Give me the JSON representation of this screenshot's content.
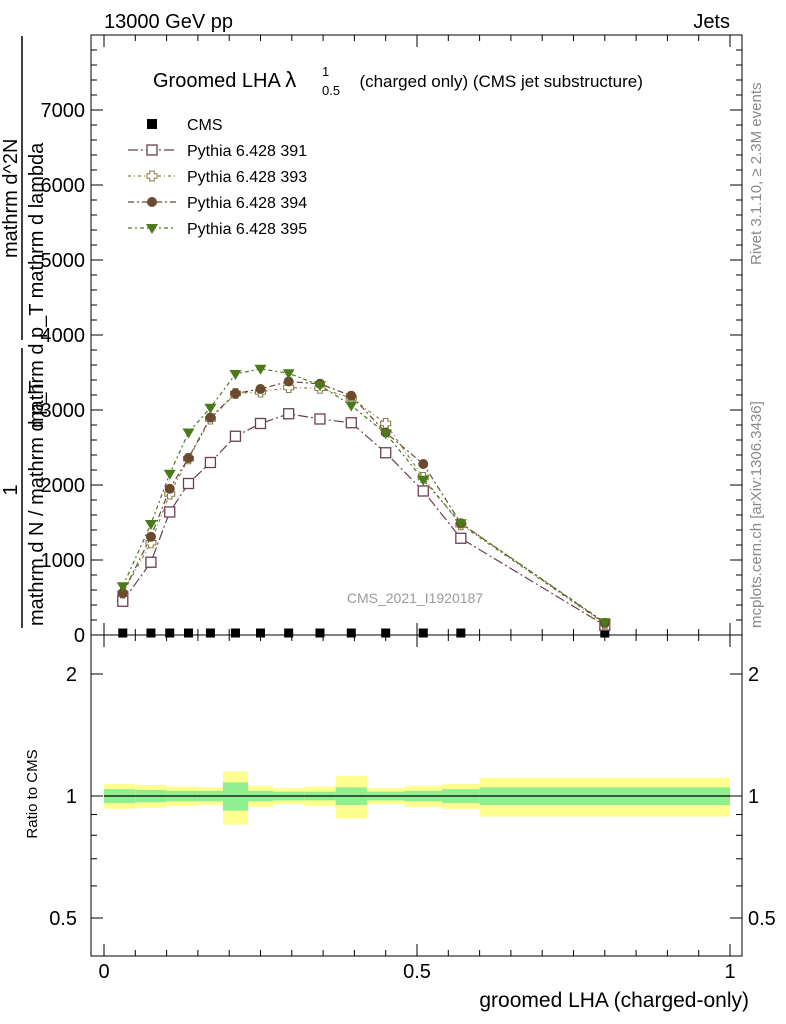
{
  "header": {
    "left": "13000 GeV pp",
    "right": "Jets"
  },
  "side_labels": {
    "rivet": "Rivet 3.1.10, ≥ 2.3M events",
    "mcplots": "mcplots.cern.ch [arXiv:1306.3436]"
  },
  "chart_data": {
    "type": "line",
    "title": {
      "main": "Groomed LHA ",
      "lambda": "λ",
      "sup": "1",
      "sub": "0.5",
      "rest": "  (charged only) (CMS jet substructure)"
    },
    "analysis_label": "CMS_2021_I1920187",
    "ylabel": {
      "prefactor": "1",
      "denominator": "mathrm d N / mathrm d p_T",
      "numerator_top": "mathrm d^2N",
      "numerator_bottom": "mathrm d p_T mathrm d lambda"
    },
    "xlabel": "groomed LHA (charged-only)",
    "xlim": [
      -0.02,
      1.0
    ],
    "ylim": [
      0,
      8000
    ],
    "yticks": [
      0,
      1000,
      2000,
      3000,
      4000,
      5000,
      6000,
      7000
    ],
    "ytick_labels": [
      "0",
      "1000",
      "2000",
      "3000",
      "4000",
      "5000",
      "6000",
      "7000"
    ],
    "xticks": [
      0,
      0.5,
      1
    ],
    "xtick_labels": [
      "0",
      "0.5",
      "1"
    ],
    "legend_position": "top-left",
    "series": [
      {
        "name": "CMS",
        "marker": "filled-square",
        "color": "#000000",
        "x": [
          0.03,
          0.075,
          0.105,
          0.135,
          0.17,
          0.21,
          0.25,
          0.295,
          0.345,
          0.395,
          0.45,
          0.51,
          0.57,
          0.8
        ],
        "y": [
          5,
          5,
          5,
          5,
          5,
          5,
          5,
          5,
          5,
          5,
          5,
          5,
          5,
          5
        ]
      },
      {
        "name": "Pythia 6.428 391",
        "marker": "open-square",
        "color": "#6b3f55",
        "x": [
          0.03,
          0.075,
          0.105,
          0.135,
          0.17,
          0.21,
          0.25,
          0.295,
          0.345,
          0.395,
          0.45,
          0.51,
          0.57,
          0.8
        ],
        "y": [
          450,
          970,
          1640,
          2020,
          2300,
          2650,
          2820,
          2950,
          2880,
          2830,
          2430,
          1920,
          1290,
          130
        ]
      },
      {
        "name": "Pythia 6.428 393",
        "marker": "open-cross",
        "color": "#8b7d4a",
        "x": [
          0.03,
          0.075,
          0.105,
          0.135,
          0.17,
          0.21,
          0.25,
          0.295,
          0.345,
          0.395,
          0.45,
          0.51,
          0.57,
          0.8
        ],
        "y": [
          560,
          1230,
          1880,
          2350,
          2880,
          3220,
          3240,
          3300,
          3290,
          3160,
          2820,
          2100,
          1470,
          150
        ]
      },
      {
        "name": "Pythia 6.428 394",
        "marker": "filled-circle",
        "color": "#6b4a30",
        "x": [
          0.03,
          0.075,
          0.105,
          0.135,
          0.17,
          0.21,
          0.25,
          0.295,
          0.345,
          0.395,
          0.45,
          0.51,
          0.57,
          0.8
        ],
        "y": [
          560,
          1310,
          1950,
          2360,
          2900,
          3220,
          3280,
          3380,
          3350,
          3190,
          2700,
          2280,
          1490,
          160
        ]
      },
      {
        "name": "Pythia 6.428 395",
        "marker": "filled-triangle-down",
        "color": "#4a7a1a",
        "x": [
          0.03,
          0.075,
          0.105,
          0.135,
          0.17,
          0.21,
          0.25,
          0.295,
          0.345,
          0.395,
          0.45,
          0.51,
          0.57,
          0.8
        ],
        "y": [
          650,
          1480,
          2150,
          2700,
          3030,
          3480,
          3550,
          3490,
          3330,
          3060,
          2690,
          2070,
          1490,
          170
        ]
      }
    ],
    "ratio": {
      "ylabel": "Ratio to CMS",
      "ylim": [
        0.4,
        2.3
      ],
      "yticks": [
        0.5,
        1,
        2
      ],
      "ytick_labels": [
        "0.5",
        "1",
        "2"
      ],
      "band_colors": {
        "inner": "#90f090",
        "outer": "#ffff90"
      },
      "bins": [
        {
          "lo": 0.0,
          "hi": 0.05,
          "inner": 0.04,
          "outer": 0.07
        },
        {
          "lo": 0.05,
          "hi": 0.1,
          "inner": 0.035,
          "outer": 0.065
        },
        {
          "lo": 0.1,
          "hi": 0.15,
          "inner": 0.03,
          "outer": 0.055
        },
        {
          "lo": 0.15,
          "hi": 0.19,
          "inner": 0.03,
          "outer": 0.05
        },
        {
          "lo": 0.19,
          "hi": 0.23,
          "inner": 0.08,
          "outer": 0.15
        },
        {
          "lo": 0.23,
          "hi": 0.27,
          "inner": 0.03,
          "outer": 0.06
        },
        {
          "lo": 0.27,
          "hi": 0.32,
          "inner": 0.025,
          "outer": 0.045
        },
        {
          "lo": 0.32,
          "hi": 0.37,
          "inner": 0.025,
          "outer": 0.055
        },
        {
          "lo": 0.37,
          "hi": 0.42,
          "inner": 0.05,
          "outer": 0.12
        },
        {
          "lo": 0.42,
          "hi": 0.48,
          "inner": 0.025,
          "outer": 0.045
        },
        {
          "lo": 0.48,
          "hi": 0.54,
          "inner": 0.03,
          "outer": 0.06
        },
        {
          "lo": 0.54,
          "hi": 0.6,
          "inner": 0.04,
          "outer": 0.07
        },
        {
          "lo": 0.6,
          "hi": 1.0,
          "inner": 0.05,
          "outer": 0.11
        }
      ]
    }
  }
}
